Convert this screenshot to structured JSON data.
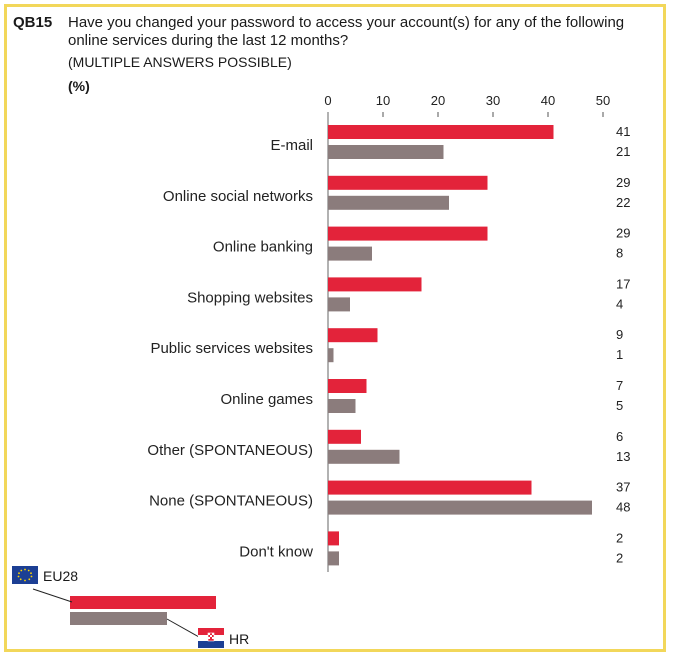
{
  "question": {
    "code": "QB15",
    "text": "Have you changed your password to access your account(s) for any of the following online services during the last 12 months?",
    "note": "(MULTIPLE ANSWERS POSSIBLE)",
    "unit": "(%)"
  },
  "colors": {
    "eu28": "#e3233a",
    "hr": "#8b7c7c",
    "border": "#f2d75a"
  },
  "chart_data": {
    "type": "bar",
    "orientation": "horizontal",
    "xlim": [
      0,
      50
    ],
    "xticks": [
      "0",
      "10",
      "20",
      "30",
      "40",
      "50"
    ],
    "categories": [
      "E-mail",
      "Online social networks",
      "Online banking",
      "Shopping websites",
      "Public services websites",
      "Online games",
      "Other (SPONTANEOUS)",
      "None (SPONTANEOUS)",
      "Don't know"
    ],
    "series": [
      {
        "name": "EU28",
        "values": [
          41,
          29,
          29,
          17,
          9,
          7,
          6,
          37,
          2
        ]
      },
      {
        "name": "HR",
        "values": [
          21,
          22,
          8,
          4,
          1,
          5,
          13,
          48,
          2
        ]
      }
    ]
  },
  "legend": {
    "eu28_label": "EU28",
    "hr_label": "HR"
  }
}
